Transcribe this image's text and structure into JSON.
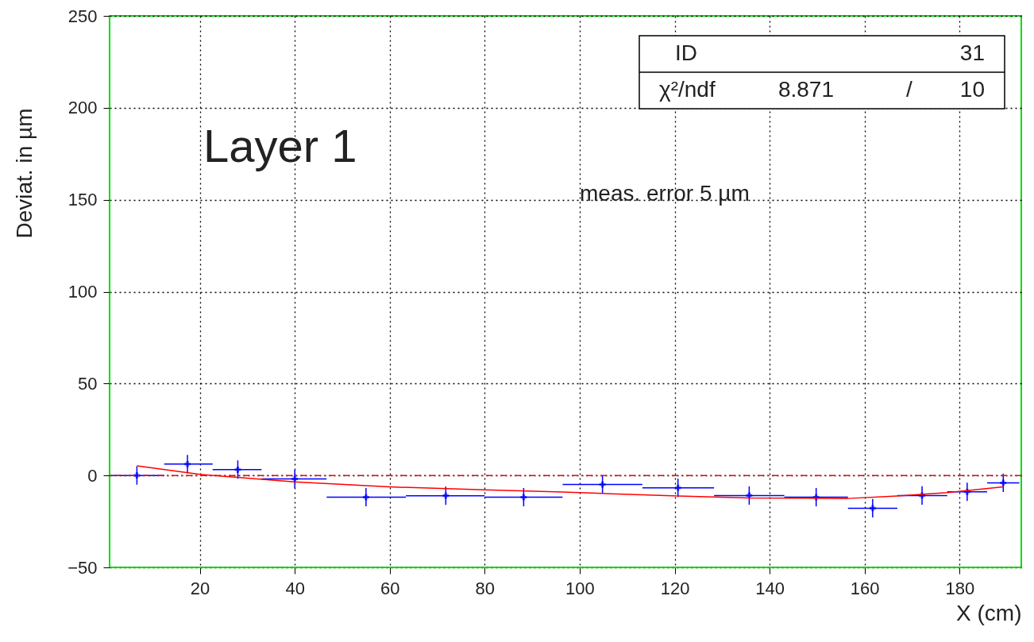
{
  "chart_data": {
    "type": "scatter",
    "xlabel": "X  (cm)",
    "ylabel": "Deviat.  in µm",
    "annotations": [
      "Layer 1",
      "meas. error 5 µm",
      "ID",
      "31",
      "χ²/ndf",
      "8.871",
      "/",
      "10"
    ],
    "xlim": [
      1,
      193
    ],
    "ylim": [
      -50,
      250
    ],
    "xticks": [
      20,
      40,
      60,
      80,
      100,
      120,
      140,
      160,
      180
    ],
    "yticks": [
      -50,
      0,
      50,
      100,
      150,
      200,
      250
    ],
    "grid": true,
    "ref_lines": [
      {
        "axis": "y",
        "value": 0,
        "color": "#ff0000",
        "line_style": "dashed"
      }
    ],
    "series": [
      {
        "color": "#0000ff",
        "marker": "cross",
        "x": [
          6.75,
          17.4,
          28,
          40,
          55,
          71.8,
          88.2,
          104.8,
          120.7,
          135.7,
          149.8,
          161.7,
          172.1,
          181.6,
          189.2
        ],
        "values": [
          0,
          6.2,
          3.2,
          -1.9,
          -11.8,
          -11,
          -11.8,
          -4.9,
          -6.7,
          -10.9,
          -11.8,
          -17.8,
          -10.9,
          -8.9,
          -4
        ],
        "errors": [
          5,
          5,
          5,
          5,
          5,
          5,
          5,
          5,
          5,
          5,
          5,
          5,
          5,
          5,
          5
        ],
        "xerrors": [
          [
            1.3,
            12.5
          ],
          [
            12.5,
            22.7
          ],
          [
            22.7,
            33
          ],
          [
            33,
            46.7
          ],
          [
            46.7,
            63.4
          ],
          [
            63.4,
            80
          ],
          [
            80,
            96.4
          ],
          [
            96.4,
            113.2
          ],
          [
            113.2,
            128.3
          ],
          [
            128.3,
            143.1
          ],
          [
            143.1,
            156.5
          ],
          [
            156.5,
            166.9
          ],
          [
            166.9,
            177.4
          ],
          [
            177.4,
            185.8
          ],
          [
            185.8,
            192.6
          ]
        ]
      },
      {
        "type": "line",
        "color": "#ff0000",
        "line_style": "solid",
        "x": [
          6.75,
          20,
          40,
          60,
          80,
          96.4,
          104.8,
          120.7,
          135.7,
          156.5,
          166.9,
          177.4,
          189.2
        ],
        "values": [
          5.3,
          0.6,
          -3.5,
          -6.2,
          -7.8,
          -9,
          -9.8,
          -11.1,
          -12.2,
          -12.5,
          -11.1,
          -9.3,
          -6.2
        ]
      }
    ]
  }
}
